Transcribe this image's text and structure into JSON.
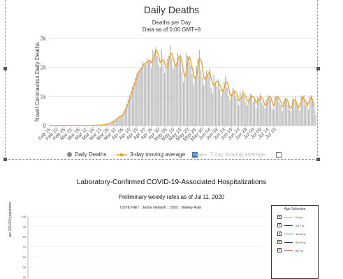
{
  "chart_data": {
    "type": "bar",
    "title": "Daily Deaths",
    "subtitle_lines": [
      "Deaths per Day",
      "Data as of 0:00 GMT+8"
    ],
    "ylabel": "Novel Coronavirus Daily Deaths",
    "ylim": [
      0,
      3000
    ],
    "yticks": [
      "0",
      "1k",
      "2k",
      "3k"
    ],
    "xtick_labels": [
      "Feb 15",
      "Feb 20",
      "Feb 25",
      "Mar 01",
      "Mar 06",
      "Mar 11",
      "Mar 16",
      "Mar 21",
      "Mar 26",
      "Mar 31",
      "Apr 05",
      "Apr 10",
      "Apr 15",
      "Apr 20",
      "Apr 25",
      "Apr 30",
      "May 05",
      "May 10",
      "May 15",
      "May 20",
      "May 25",
      "May 30",
      "Jun 04",
      "Jun 09",
      "Jun 14",
      "Jun 19",
      "Jun 24",
      "Jun 29",
      "Jul 04",
      "Jul 09",
      "Jul 14",
      "Jul 19"
    ],
    "start_label": "Feb 15",
    "grid": true,
    "series": [
      {
        "name": "Daily Deaths",
        "type": "bar",
        "color": "#bdbdbd",
        "values": [
          0,
          0,
          0,
          0,
          0,
          0,
          0,
          0,
          0,
          0,
          0,
          0,
          0,
          0,
          0,
          0,
          1,
          0,
          1,
          1,
          0,
          1,
          2,
          1,
          2,
          3,
          3,
          5,
          6,
          7,
          9,
          10,
          13,
          15,
          18,
          22,
          26,
          35,
          45,
          55,
          70,
          90,
          110,
          140,
          170,
          210,
          250,
          300,
          330,
          350,
          400,
          500,
          600,
          750,
          900,
          1050,
          1200,
          1350,
          1500,
          1650,
          1800,
          1900,
          1950,
          2000,
          2200,
          2150,
          2100,
          2300,
          2250,
          2200,
          2000,
          2600,
          2500,
          2700,
          2400,
          2100,
          2000,
          2600,
          2200,
          1800,
          1950,
          2300,
          2400,
          2750,
          2300,
          1950,
          2150,
          2100,
          2500,
          2400,
          2300,
          1850,
          1500,
          1650,
          2500,
          2400,
          2200,
          2050,
          1750,
          1400,
          1700,
          2050,
          2300,
          2600,
          1900,
          1650,
          1400,
          1700,
          1900,
          1700,
          1950,
          1300,
          1100,
          1750,
          1500,
          1350,
          1600,
          1250,
          1000,
          1250,
          1500,
          1700,
          1300,
          1000,
          900,
          1100,
          1300,
          1200,
          1000,
          900,
          700,
          1150,
          1000,
          1200,
          1000,
          800,
          700,
          950,
          1100,
          1050,
          800,
          950,
          600,
          1000,
          950,
          1100,
          800,
          700,
          600,
          900,
          1050,
          1000,
          900,
          600,
          550,
          1000,
          950,
          1000,
          800,
          700,
          500,
          850,
          950,
          900,
          800,
          550,
          500,
          900,
          800,
          1000,
          750,
          600,
          500,
          1000,
          950,
          1050,
          700,
          800,
          550,
          1000,
          1050,
          900,
          600,
          400
        ]
      },
      {
        "name": "3-day moving average",
        "type": "line",
        "color": "#f0a32a",
        "values": [
          0,
          0,
          0,
          0,
          0,
          0,
          0,
          0,
          0,
          0,
          0,
          0,
          0,
          0,
          0,
          0,
          0,
          0,
          1,
          1,
          1,
          1,
          1,
          1,
          2,
          2,
          3,
          4,
          5,
          6,
          7,
          9,
          11,
          13,
          15,
          18,
          21,
          28,
          35,
          45,
          57,
          72,
          90,
          113,
          140,
          173,
          210,
          253,
          293,
          327,
          360,
          417,
          500,
          617,
          750,
          900,
          1050,
          1200,
          1350,
          1500,
          1650,
          1783,
          1883,
          1950,
          2050,
          2117,
          2150,
          2183,
          2217,
          2250,
          2150,
          2267,
          2367,
          2600,
          2533,
          2400,
          2167,
          2233,
          2267,
          2200,
          1983,
          2017,
          2217,
          2483,
          2483,
          2333,
          2133,
          2067,
          2250,
          2333,
          2400,
          2183,
          1883,
          1667,
          1883,
          2183,
          2367,
          2217,
          2000,
          1733,
          1617,
          1717,
          2017,
          2317,
          2267,
          2050,
          1650,
          1583,
          1667,
          1767,
          1850,
          1650,
          1450,
          1383,
          1450,
          1533,
          1483,
          1400,
          1283,
          1167,
          1250,
          1483,
          1500,
          1333,
          1067,
          1000,
          1100,
          1200,
          1167,
          1033,
          867,
          917,
          950,
          1117,
          1067,
          1000,
          833,
          817,
          917,
          1033,
          983,
          933,
          783,
          850,
          850,
          1017,
          950,
          867,
          700,
          733,
          850,
          983,
          983,
          833,
          683,
          833,
          983,
          983,
          917,
          833,
          667,
          683,
          900,
          917,
          817,
          617,
          583,
          733,
          900,
          850,
          783,
          617,
          700,
          817,
          1000,
          900,
          850,
          683,
          783,
          867,
          983,
          850,
          633
        ]
      },
      {
        "name": "7-day moving average",
        "type": "line",
        "color": "#cfcfcf",
        "visible": false
      }
    ]
  },
  "legend": {
    "daily": "Daily Deaths",
    "ma3": "3-day moving average",
    "ma7": "7-day moving average"
  },
  "section2": {
    "title": "Laboratory-Confirmed COVID-19-Associated Hospitalizations",
    "subtitle": "Preliminary weekly rates as of Jul 11, 2020",
    "network_title": "COVID-NET :: Entire Network :: 2020 :: Weekly Rate",
    "ylabel": "per 100,000 population",
    "yticks": [
      "100",
      "90",
      "80",
      "70",
      "60",
      "50",
      "40"
    ],
    "age_selection_title": "Age Selection",
    "age_groups": [
      {
        "label": "0-4 yr",
        "color": "#e8c13a"
      },
      {
        "label": "5-17 yr",
        "color": "#333333"
      },
      {
        "label": "18-49 yr",
        "color": "#3a7fc1"
      },
      {
        "label": "50-64 yr",
        "color": "#2e2e6e"
      },
      {
        "label": "65+ yr",
        "color": "#d9534f"
      }
    ]
  }
}
